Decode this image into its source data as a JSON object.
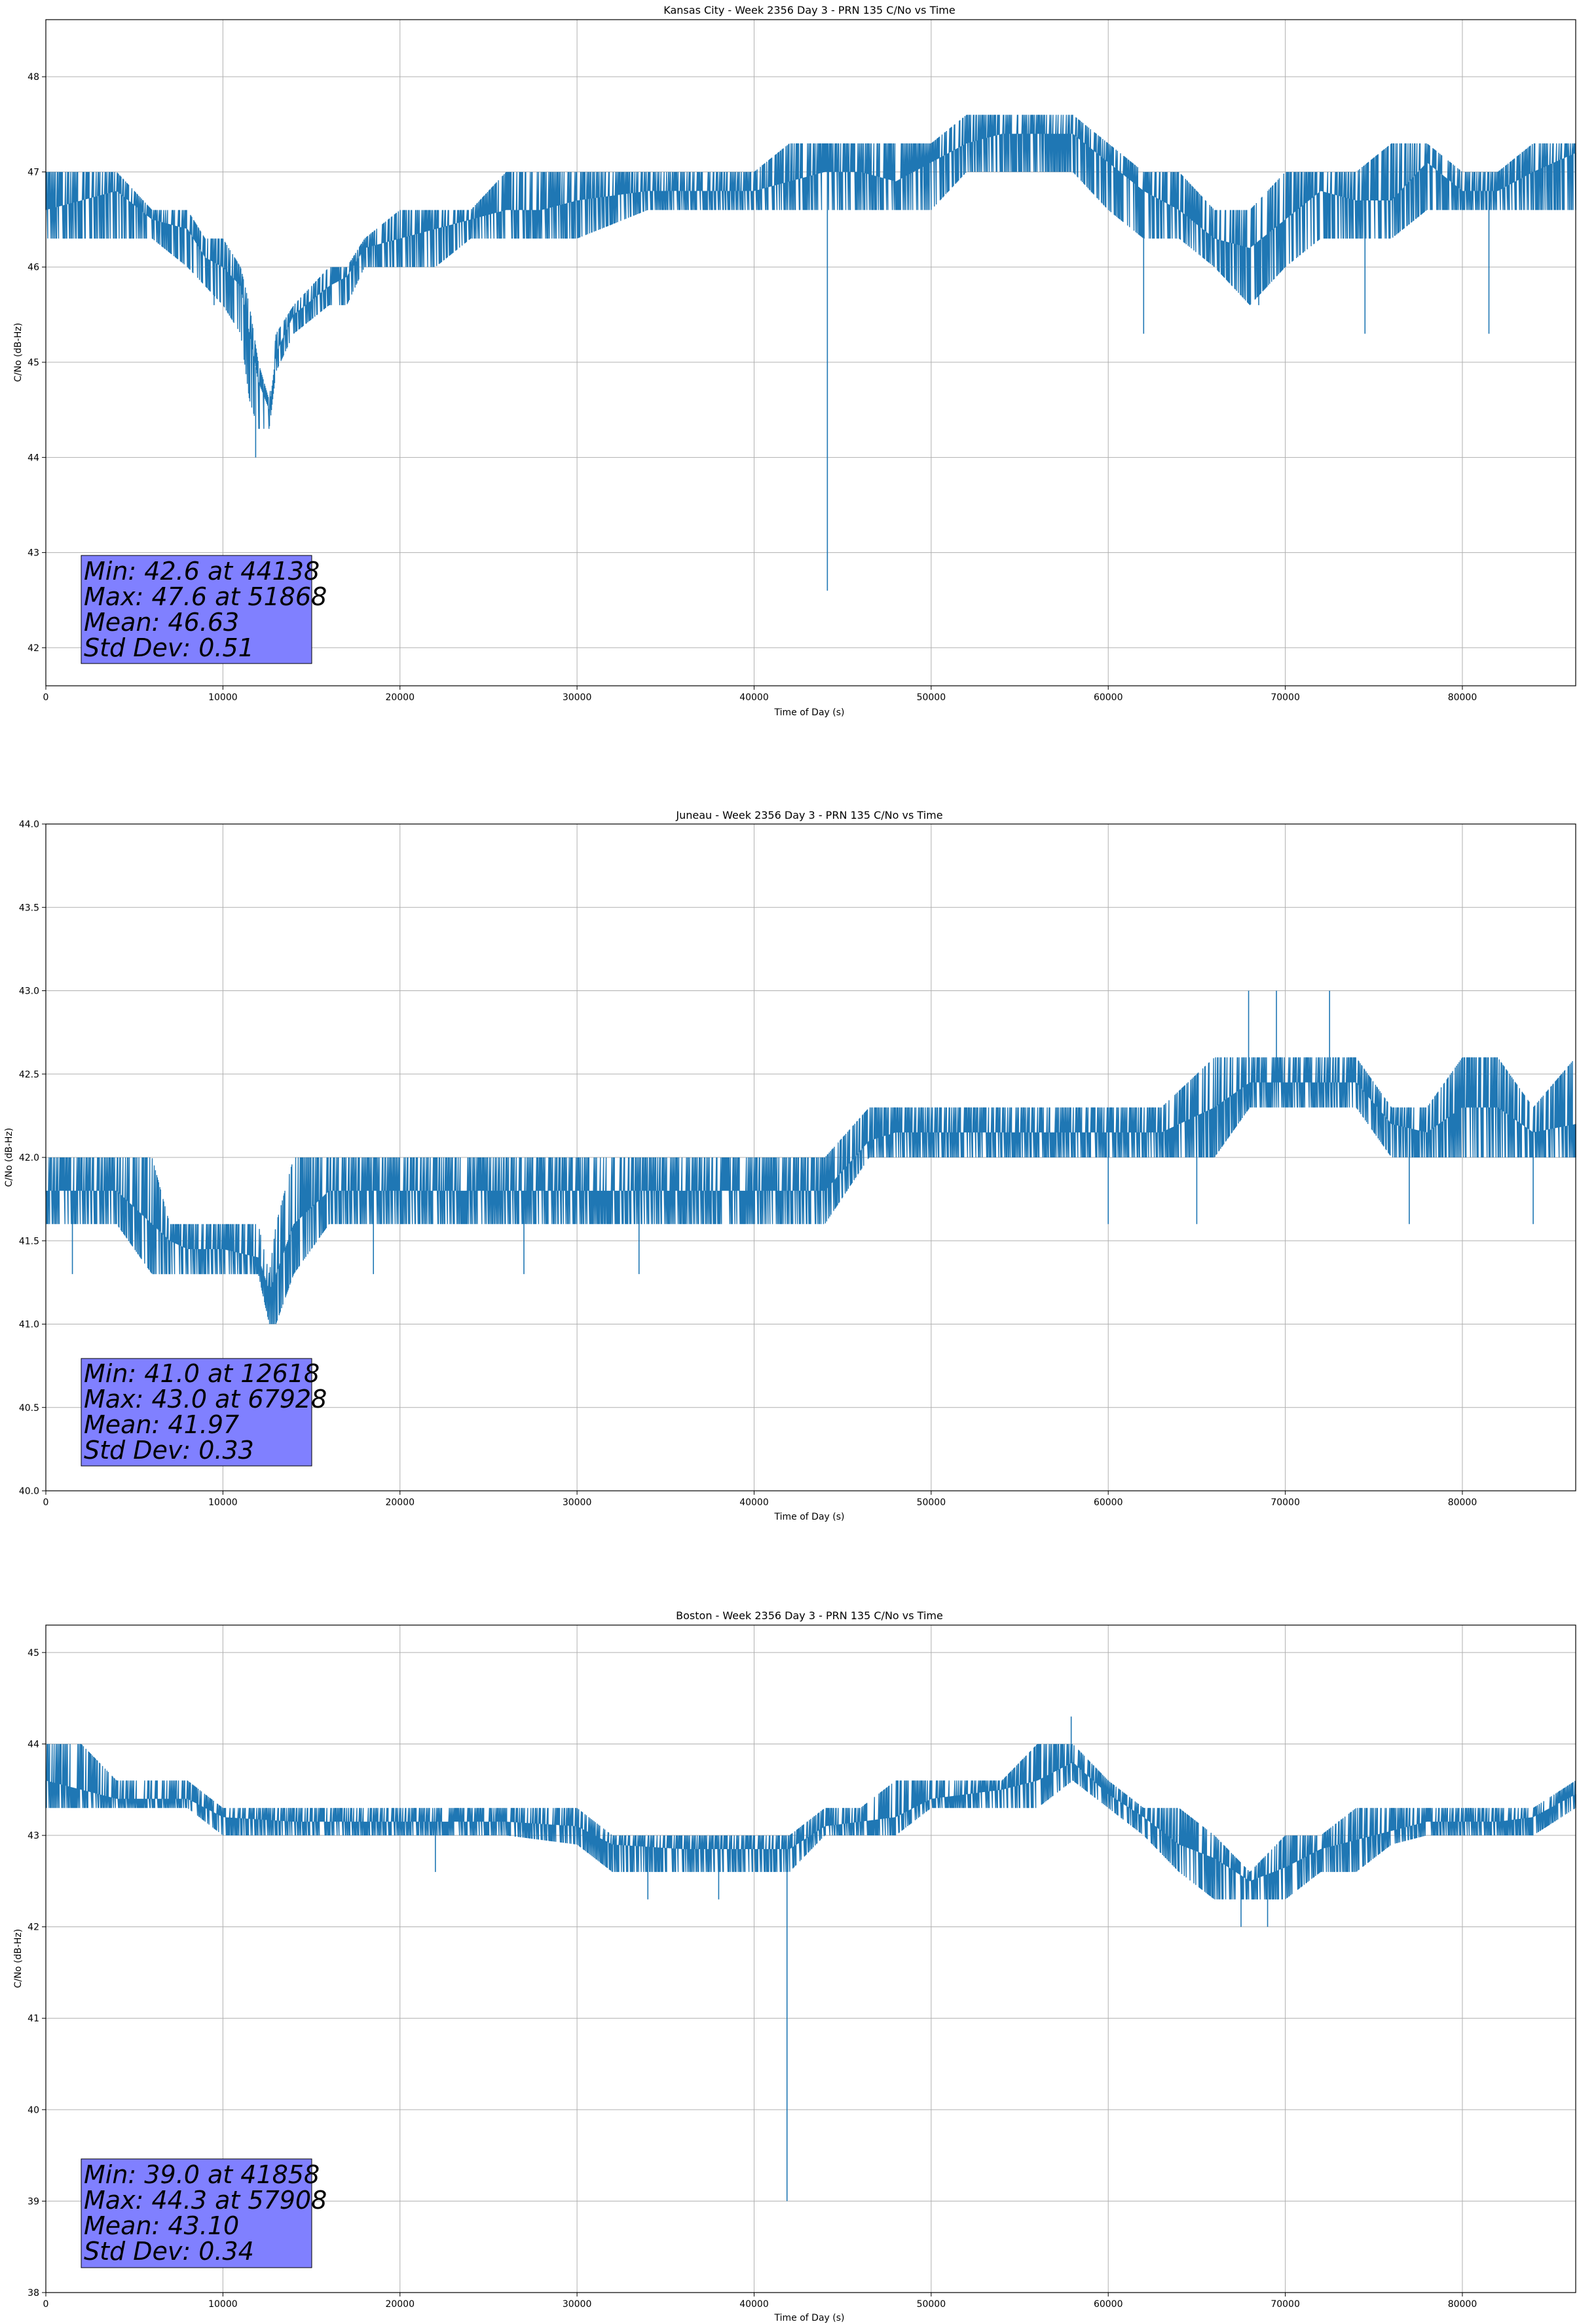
{
  "colors": {
    "line": "#1f77b4",
    "grid": "#b0b0b0",
    "stats_box": "#8080ff",
    "axes": "#000000"
  },
  "chart_data": [
    {
      "type": "line",
      "title": "Kansas City - Week 2356 Day 3 - PRN 135 C/No vs Time",
      "xlabel": "Time of Day (s)",
      "ylabel": "C/No (dB-Hz)",
      "xlim": [
        0,
        86400
      ],
      "ylim": [
        41.6,
        48.6
      ],
      "xticks": [
        0,
        10000,
        20000,
        30000,
        40000,
        50000,
        60000,
        70000,
        80000
      ],
      "yticks": [
        42,
        43,
        44,
        45,
        46,
        47,
        48
      ],
      "grid": true,
      "stats": [
        "Min: 42.6 at 44138",
        "Max: 47.6 at 51868",
        "Mean: 46.63",
        "Std Dev: 0.51"
      ],
      "series": [
        {
          "x": [
            0,
            2000,
            4000,
            6000,
            8000,
            9000,
            10000,
            11000,
            11500,
            12000,
            12618,
            13000,
            14000,
            16000,
            17000,
            18000,
            20000,
            22000,
            24000,
            26000,
            28000,
            30000,
            34000,
            38000,
            40000,
            42000,
            44000,
            46000,
            48000,
            50000,
            52000,
            54000,
            56000,
            58000,
            60000,
            62000,
            64000,
            66000,
            68000,
            70000,
            72000,
            74000,
            76000,
            78000,
            80000,
            82000,
            84000,
            86400
          ],
          "y": [
            46.6,
            46.7,
            46.8,
            46.5,
            46.4,
            46.1,
            46.0,
            45.8,
            45.3,
            44.8,
            44.5,
            45.1,
            45.5,
            45.8,
            45.9,
            46.2,
            46.3,
            46.4,
            46.5,
            46.6,
            46.6,
            46.7,
            46.8,
            46.8,
            46.8,
            46.9,
            47.0,
            47.0,
            46.9,
            47.1,
            47.3,
            47.4,
            47.4,
            47.4,
            47.1,
            46.8,
            46.6,
            46.3,
            46.2,
            46.5,
            46.8,
            46.7,
            46.7,
            47.1,
            46.8,
            46.8,
            47.0,
            47.2
          ],
          "lower": [
            46.3,
            46.3,
            46.3,
            46.3,
            46.0,
            45.8,
            45.6,
            45.3,
            44.6,
            44.3,
            44.3,
            44.9,
            45.3,
            45.6,
            45.6,
            46.0,
            46.0,
            46.0,
            46.3,
            46.3,
            46.3,
            46.3,
            46.6,
            46.6,
            46.6,
            46.6,
            46.6,
            46.6,
            46.6,
            46.6,
            47.0,
            47.0,
            47.0,
            47.0,
            46.6,
            46.3,
            46.3,
            46.0,
            45.6,
            46.0,
            46.3,
            46.3,
            46.3,
            46.6,
            46.6,
            46.6,
            46.6,
            46.6
          ],
          "upper": [
            47.0,
            47.0,
            47.0,
            46.6,
            46.6,
            46.3,
            46.3,
            46.0,
            45.6,
            45.0,
            44.6,
            45.3,
            45.6,
            46.0,
            46.0,
            46.3,
            46.6,
            46.6,
            46.6,
            47.0,
            47.0,
            47.0,
            47.0,
            47.0,
            47.0,
            47.3,
            47.3,
            47.3,
            47.3,
            47.3,
            47.6,
            47.6,
            47.6,
            47.6,
            47.3,
            47.0,
            47.0,
            46.6,
            46.6,
            47.0,
            47.0,
            47.0,
            47.3,
            47.3,
            47.0,
            47.0,
            47.3,
            47.3
          ],
          "spikes": [
            [
              44138,
              42.6
            ],
            [
              11850,
              44.0
            ],
            [
              62000,
              45.3
            ],
            [
              74500,
              45.3
            ],
            [
              81500,
              45.3
            ],
            [
              68500,
              45.6
            ],
            [
              9500,
              45.6
            ]
          ]
        }
      ]
    },
    {
      "type": "line",
      "title": "Juneau - Week 2356 Day 3 - PRN 135 C/No vs Time",
      "xlabel": "Time of Day (s)",
      "ylabel": "C/No (dB-Hz)",
      "xlim": [
        0,
        86400
      ],
      "ylim": [
        40.0,
        44.0
      ],
      "xticks": [
        0,
        10000,
        20000,
        30000,
        40000,
        50000,
        60000,
        70000,
        80000
      ],
      "yticks": [
        40.0,
        40.5,
        41.0,
        41.5,
        42.0,
        42.5,
        43.0,
        43.5,
        44.0
      ],
      "grid": true,
      "stats": [
        "Min: 41.0 at 12618",
        "Max: 43.0 at 67928",
        "Mean: 41.97",
        "Std Dev: 0.33"
      ],
      "series": [
        {
          "x": [
            0,
            2000,
            4000,
            6000,
            7000,
            8000,
            10000,
            12000,
            12618,
            13000,
            14000,
            16000,
            18000,
            20000,
            24000,
            28000,
            32000,
            36000,
            40000,
            44000,
            46500,
            48000,
            52000,
            56000,
            60000,
            63000,
            66000,
            68000,
            70000,
            72000,
            74000,
            76000,
            78000,
            80000,
            82000,
            84000,
            86400
          ],
          "y": [
            41.8,
            41.8,
            41.8,
            41.6,
            41.5,
            41.45,
            41.45,
            41.4,
            41.2,
            41.3,
            41.6,
            41.8,
            41.8,
            41.8,
            41.8,
            41.8,
            41.8,
            41.8,
            41.8,
            41.8,
            42.1,
            42.15,
            42.15,
            42.15,
            42.15,
            42.15,
            42.3,
            42.45,
            42.45,
            42.45,
            42.45,
            42.2,
            42.15,
            42.3,
            42.3,
            42.15,
            42.2
          ],
          "lower": [
            41.6,
            41.6,
            41.6,
            41.3,
            41.3,
            41.3,
            41.3,
            41.3,
            41.0,
            41.0,
            41.3,
            41.6,
            41.6,
            41.6,
            41.6,
            41.6,
            41.6,
            41.6,
            41.6,
            41.6,
            42.0,
            42.0,
            42.0,
            42.0,
            42.0,
            42.0,
            42.0,
            42.3,
            42.3,
            42.3,
            42.3,
            42.0,
            42.0,
            42.0,
            42.0,
            42.0,
            42.0
          ],
          "upper": [
            42.0,
            42.0,
            42.0,
            42.0,
            41.6,
            41.6,
            41.6,
            41.6,
            41.3,
            41.6,
            42.0,
            42.0,
            42.0,
            42.0,
            42.0,
            42.0,
            42.0,
            42.0,
            42.0,
            42.0,
            42.3,
            42.3,
            42.3,
            42.3,
            42.3,
            42.3,
            42.6,
            42.6,
            42.6,
            42.6,
            42.6,
            42.3,
            42.3,
            42.6,
            42.6,
            42.3,
            42.6
          ],
          "spikes": [
            [
              67928,
              43.0
            ],
            [
              69500,
              43.0
            ],
            [
              72500,
              43.0
            ],
            [
              1500,
              41.3
            ],
            [
              18500,
              41.3
            ],
            [
              27000,
              41.3
            ],
            [
              33500,
              41.3
            ],
            [
              60000,
              41.6
            ],
            [
              65000,
              41.6
            ],
            [
              77000,
              41.6
            ],
            [
              84000,
              41.6
            ]
          ]
        }
      ]
    },
    {
      "type": "line",
      "title": "Boston - Week 2356 Day 3 - PRN 135 C/No vs Time",
      "xlabel": "Time of Day (s)",
      "ylabel": "C/No (dB-Hz)",
      "xlim": [
        0,
        86400
      ],
      "ylim": [
        38.0,
        45.3
      ],
      "xticks": [
        0,
        10000,
        20000,
        30000,
        40000,
        50000,
        60000,
        70000,
        80000
      ],
      "yticks": [
        38,
        39,
        40,
        41,
        42,
        43,
        44,
        45
      ],
      "grid": true,
      "stats": [
        "Min: 39.0 at 41858",
        "Max: 44.3 at 57908",
        "Mean: 43.10",
        "Std Dev: 0.34"
      ],
      "series": [
        {
          "x": [
            0,
            2000,
            4000,
            6000,
            8000,
            10000,
            14000,
            18000,
            22000,
            26000,
            30000,
            32000,
            36000,
            40000,
            42000,
            44000,
            46000,
            48000,
            50000,
            52000,
            54000,
            56000,
            58000,
            60000,
            62000,
            64000,
            66000,
            68000,
            70000,
            72000,
            74000,
            76000,
            78000,
            80000,
            82000,
            84000,
            86400
          ],
          "y": [
            43.6,
            43.5,
            43.4,
            43.4,
            43.4,
            43.2,
            43.15,
            43.15,
            43.15,
            43.15,
            43.1,
            42.9,
            42.85,
            42.85,
            42.85,
            43.1,
            43.15,
            43.2,
            43.4,
            43.45,
            43.5,
            43.6,
            43.8,
            43.45,
            43.2,
            42.9,
            42.75,
            42.5,
            42.65,
            42.85,
            42.95,
            43.05,
            43.15,
            43.15,
            43.15,
            43.2,
            43.45
          ],
          "lower": [
            43.3,
            43.3,
            43.3,
            43.3,
            43.3,
            43.0,
            43.0,
            43.0,
            43.0,
            43.0,
            42.9,
            42.6,
            42.6,
            42.6,
            42.6,
            43.0,
            43.0,
            43.0,
            43.3,
            43.3,
            43.3,
            43.3,
            43.6,
            43.3,
            43.0,
            42.6,
            42.3,
            42.3,
            42.3,
            42.6,
            42.6,
            42.9,
            43.0,
            43.0,
            43.0,
            43.0,
            43.3
          ],
          "upper": [
            44.0,
            44.0,
            43.6,
            43.6,
            43.6,
            43.3,
            43.3,
            43.3,
            43.3,
            43.3,
            43.3,
            43.0,
            43.0,
            43.0,
            43.0,
            43.3,
            43.3,
            43.6,
            43.6,
            43.6,
            43.6,
            44.0,
            44.0,
            43.6,
            43.3,
            43.3,
            43.0,
            42.6,
            43.0,
            43.0,
            43.3,
            43.3,
            43.3,
            43.3,
            43.3,
            43.3,
            43.6
          ],
          "spikes": [
            [
              41858,
              39.0
            ],
            [
              57908,
              44.3
            ],
            [
              67500,
              42.0
            ],
            [
              69000,
              42.0
            ],
            [
              22000,
              42.6
            ],
            [
              34000,
              42.3
            ],
            [
              38000,
              42.3
            ]
          ]
        }
      ]
    }
  ]
}
